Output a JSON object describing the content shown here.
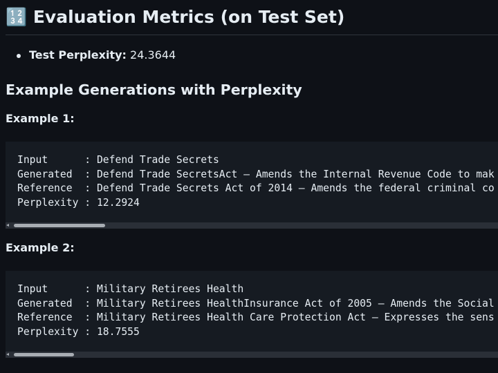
{
  "header": {
    "title": "🔢 Evaluation Metrics (on Test Set)"
  },
  "metrics": [
    {
      "label": "Test Perplexity:",
      "value": "24.3644"
    }
  ],
  "section": {
    "title": "Example Generations with Perplexity"
  },
  "examples": [
    {
      "title": "Example 1:",
      "lines": [
        "Input      : Defend Trade Secrets",
        "Generated  : Defend Trade SecretsAct – Amends the Internal Revenue Code to mak",
        "Reference  : Defend Trade Secrets Act of 2014 – Amends the federal criminal co",
        "Perplexity : 12.2924"
      ]
    },
    {
      "title": "Example 2:",
      "lines": [
        "Input      : Military Retirees Health",
        "Generated  : Military Retirees HealthInsurance Act of 2005 – Amends the Social",
        "Reference  : Military Retirees Health Care Protection Act – Expresses the sens",
        "Perplexity : 18.7555"
      ]
    }
  ]
}
